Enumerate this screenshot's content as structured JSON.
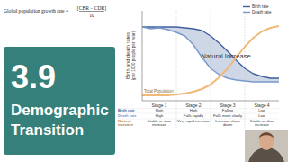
{
  "formula": {
    "lhs": "Global population growth rate =",
    "numerator": "[CBR − CDR]",
    "denominator": "10"
  },
  "heading": {
    "number": "3.9",
    "lines": [
      "Demographic",
      "Transition"
    ]
  },
  "chart_data": {
    "type": "line",
    "y_label": "Birth and death rates (per 1000 people per year)",
    "x": [
      0,
      0.25,
      0.5,
      0.75,
      1,
      1.25,
      1.5,
      1.75,
      2,
      2.25,
      2.5,
      2.75,
      3,
      3.25,
      3.5,
      3.75,
      4
    ],
    "series": [
      {
        "name": "Birth rate",
        "color": "#3f5f9e",
        "values": [
          82,
          82,
          82,
          82,
          82,
          81,
          80,
          78,
          72,
          64,
          55,
          45,
          36,
          30,
          27,
          25,
          25
        ]
      },
      {
        "name": "Death rate",
        "color": "#7b98cc",
        "values": [
          82,
          80,
          81,
          79,
          76,
          72,
          62,
          48,
          36,
          29,
          25,
          23,
          22,
          21,
          21,
          21,
          21
        ]
      },
      {
        "name": "Total Population",
        "color": "#f0b979",
        "values": [
          6,
          6,
          6,
          6,
          7,
          8,
          10,
          13,
          18,
          26,
          36,
          48,
          60,
          70,
          77,
          81,
          83
        ]
      }
    ],
    "annotations": [
      "Natural Increase"
    ],
    "xlim": [
      0,
      4
    ],
    "ylim": [
      0,
      100
    ],
    "xticks": [
      {
        "value": 0.5,
        "label": "Stage 1"
      },
      {
        "value": 1.5,
        "label": "Stage 2"
      },
      {
        "value": 2.5,
        "label": "Stage 3"
      },
      {
        "value": 3.5,
        "label": "Stage 4"
      }
    ],
    "tick_labels": "x",
    "legend": "upper right"
  },
  "table": {
    "rows": [
      [
        "Birth rate",
        "High",
        "High",
        "Falling",
        "Low"
      ],
      [
        "Death rate",
        "High",
        "Falls rapidly",
        "Falls more slowly",
        "Low"
      ],
      [
        "Natural increase",
        "Stable or slow increase",
        "Very rapid increase",
        "Increase slows down",
        "Stable or slow increase"
      ]
    ]
  }
}
